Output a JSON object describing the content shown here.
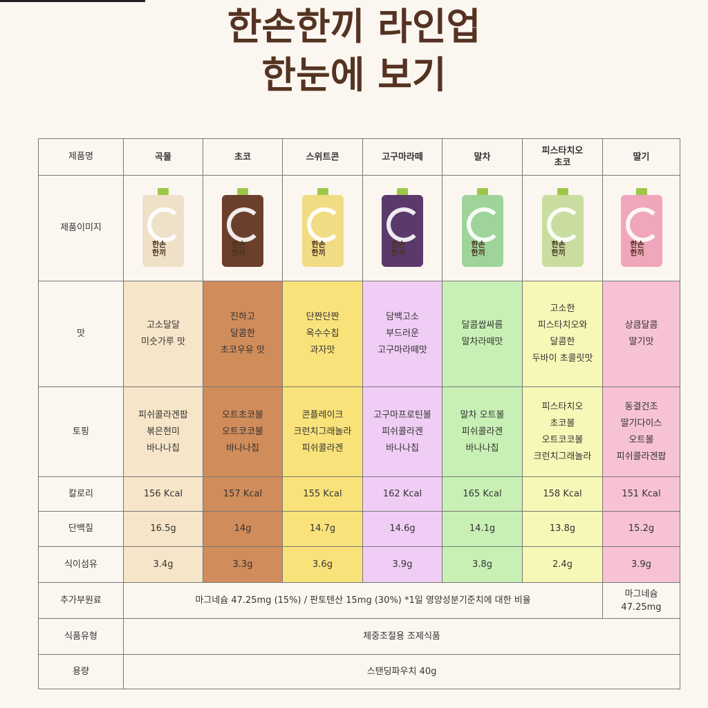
{
  "title": {
    "line1": "한손한끼 라인업",
    "line2": "한눈에 보기"
  },
  "row_labels": {
    "name": "제품명",
    "image": "제품이미지",
    "taste": "맛",
    "topping": "토핑",
    "calorie": "칼로리",
    "protein": "단백질",
    "fiber": "식이섬유",
    "additive": "추가부원료",
    "type": "식품유형",
    "volume": "용량"
  },
  "products": [
    {
      "name": "곡물",
      "color": "#f6e5c8",
      "pouch_color": "#efe0c8",
      "taste": [
        "고소달달",
        "미숫가루 맛"
      ],
      "topping": [
        "피쉬콜라겐팝",
        "볶은현미",
        "바나나칩"
      ],
      "calorie": "156 Kcal",
      "protein": "16.5g",
      "fiber": "3.4g"
    },
    {
      "name": "초코",
      "color": "#d08c5a",
      "pouch_color": "#6b3f2c",
      "taste": [
        "진하고",
        "달콤한",
        "초코우유 맛"
      ],
      "topping": [
        "오트초코볼",
        "오트코코볼",
        "바나나칩"
      ],
      "calorie": "157 Kcal",
      "protein": "14g",
      "fiber": "3.3g"
    },
    {
      "name": "스위트콘",
      "color": "#f9e27a",
      "pouch_color": "#f1dc86",
      "taste": [
        "단짠단짠",
        "옥수수칩",
        "과자맛"
      ],
      "topping": [
        "콘플레이크",
        "크런치그래놀라",
        "피쉬콜라겐"
      ],
      "calorie": "155 Kcal",
      "protein": "14.7g",
      "fiber": "3.6g"
    },
    {
      "name": "고구마라떼",
      "color": "#f0cdf5",
      "pouch_color": "#5a3a6a",
      "taste": [
        "담백고소",
        "부드러운",
        "고구마라떼맛"
      ],
      "topping": [
        "고구마프로틴볼",
        "피쉬콜라겐",
        "바나나칩"
      ],
      "calorie": "162 Kcal",
      "protein": "14.6g",
      "fiber": "3.9g"
    },
    {
      "name": "말차",
      "color": "#c8f0b5",
      "pouch_color": "#9ed49a",
      "taste": [
        "달콤쌉싸름",
        "말차라떼맛"
      ],
      "topping": [
        "말차 오트볼",
        "피쉬콜라겐",
        "바나나칩"
      ],
      "calorie": "165 Kcal",
      "protein": "14.1g",
      "fiber": "3.8g"
    },
    {
      "name": "피스타치오\n초코",
      "name_lines": [
        "피스타치오",
        "초코"
      ],
      "color": "#f7f7b8",
      "pouch_color": "#c9dda0",
      "taste": [
        "고소한",
        "피스타치오와",
        "달콤한",
        "두바이 초콜릿맛"
      ],
      "topping": [
        "피스타치오",
        "초코볼",
        "오트코코볼",
        "크런치그래놀라"
      ],
      "calorie": "158 Kcal",
      "protein": "13.8g",
      "fiber": "2.4g"
    },
    {
      "name": "딸기",
      "color": "#f6c2d4",
      "pouch_color": "#f0a6bb",
      "taste": [
        "상큼달콤",
        "딸기맛"
      ],
      "topping": [
        "동결건조",
        "딸기다이스",
        "오트볼",
        "피쉬콜라겐팝"
      ],
      "calorie": "151 Kcal",
      "protein": "15.2g",
      "fiber": "3.9g"
    }
  ],
  "pouch_text": [
    "한손",
    "한끼"
  ],
  "additive_common": "마그네슘 47.25mg (15%) / 판토텐산 15mg (30%)    *1일 영양성분기준치에 대한 비율",
  "additive_strawberry": [
    "마그네슘",
    "47.25mg"
  ],
  "food_type": "체중조절용 조제식품",
  "volume": "스탠딩파우치 40g"
}
